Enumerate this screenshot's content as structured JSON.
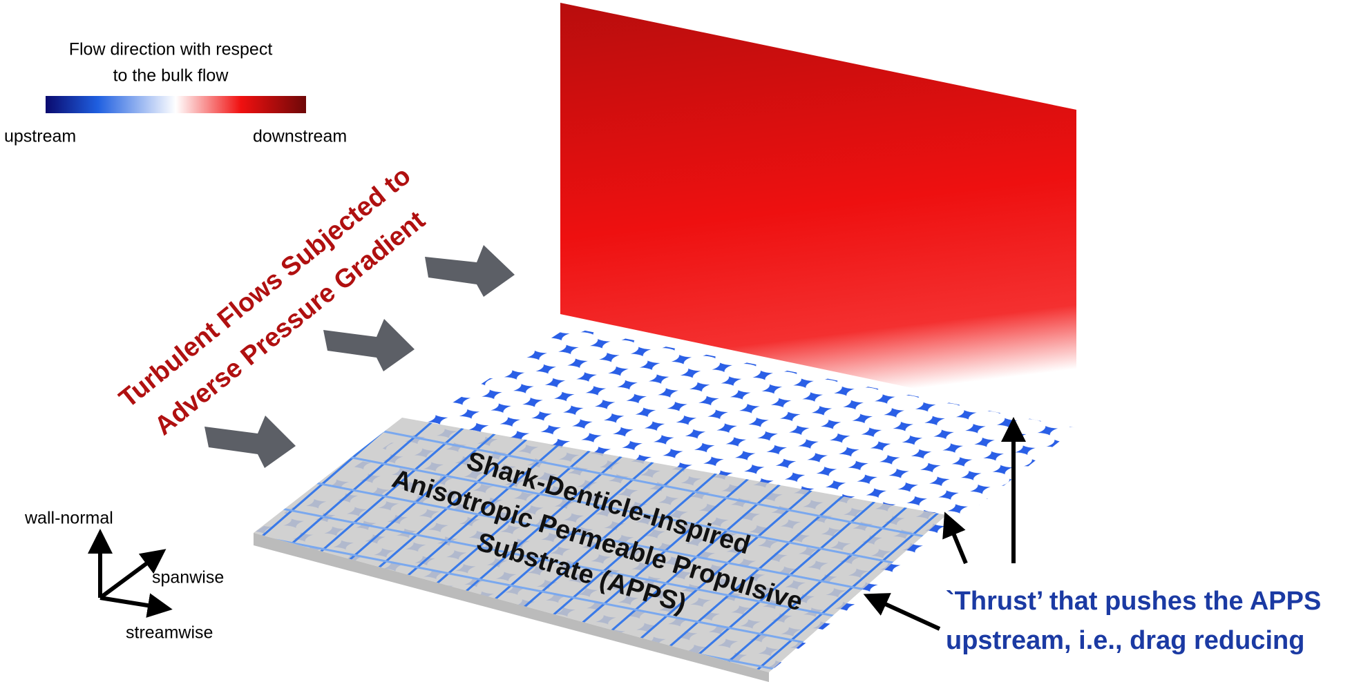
{
  "colorbar": {
    "title": [
      "Flow direction with respect",
      "to the bulk flow"
    ],
    "min_label": "upstream",
    "max_label": "downstream"
  },
  "flow_label": [
    "Turbulent Flows Subjected to",
    "Adverse Pressure Gradient"
  ],
  "substrate_label": [
    "Shark-Denticle-Inspired",
    "Anisotropic Permeable Propulsive",
    "Substrate (APPS)"
  ],
  "axes": {
    "wall_normal": "wall-normal",
    "spanwise": "spanwise",
    "streamwise": "streamwise"
  },
  "thrust_label": [
    "`Thrust’ that pushes the APPS",
    "upstream, i.e., drag reducing"
  ]
}
